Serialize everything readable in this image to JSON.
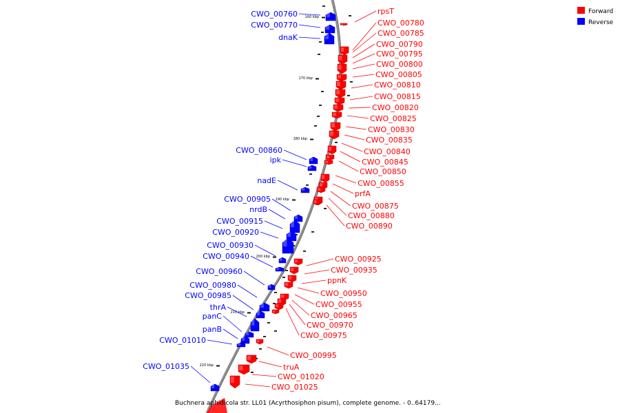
{
  "title": "Buchnera aphidicola str. LL01 (Acyrthosiphon pisum), complete genome. - 0..64179...",
  "legend": [
    {
      "label": "Forward",
      "color": "#ff0000"
    },
    {
      "label": "Reverse",
      "color": "#0000ff"
    }
  ],
  "colors": {
    "forward": "#ff0000",
    "reverse": "#0000ff",
    "backbone": "#888888"
  },
  "ticks": [
    "160 kbp",
    "170 kbp",
    "180 kbp",
    "190 kbp",
    "200 kbp",
    "210 kbp",
    "220 kbp"
  ],
  "forward_genes": [
    "rpsT",
    "CWO_00780",
    "CWO_00785",
    "CWO_00790",
    "CWO_00795",
    "CWO_00800",
    "CWO_00805",
    "CWO_00810",
    "CWO_00815",
    "CWO_00820",
    "CWO_00825",
    "CWO_00830",
    "CWO_00835",
    "CWO_00840",
    "CWO_00845",
    "CWO_00850",
    "CWO_00855",
    "prfA",
    "CWO_00875",
    "CWO_00880",
    "CWO_00890",
    "CWO_00925",
    "CWO_00935",
    "ppnK",
    "CWO_00950",
    "CWO_00955",
    "CWO_00965",
    "CWO_00970",
    "CWO_00975",
    "CWO_00995",
    "truA",
    "CWO_01020",
    "CWO_01025"
  ],
  "reverse_genes": [
    "CWO_00760",
    "CWO_00770",
    "dnaK",
    "CWO_00860",
    "ipk",
    "nadE",
    "CWO_00905",
    "nrdB",
    "CWO_00915",
    "CWO_00920",
    "CWO_00930",
    "CWO_00940",
    "CWO_00960",
    "CWO_00980",
    "CWO_00985",
    "thrA",
    "panC",
    "panB",
    "CWO_01010",
    "CWO_01035"
  ]
}
